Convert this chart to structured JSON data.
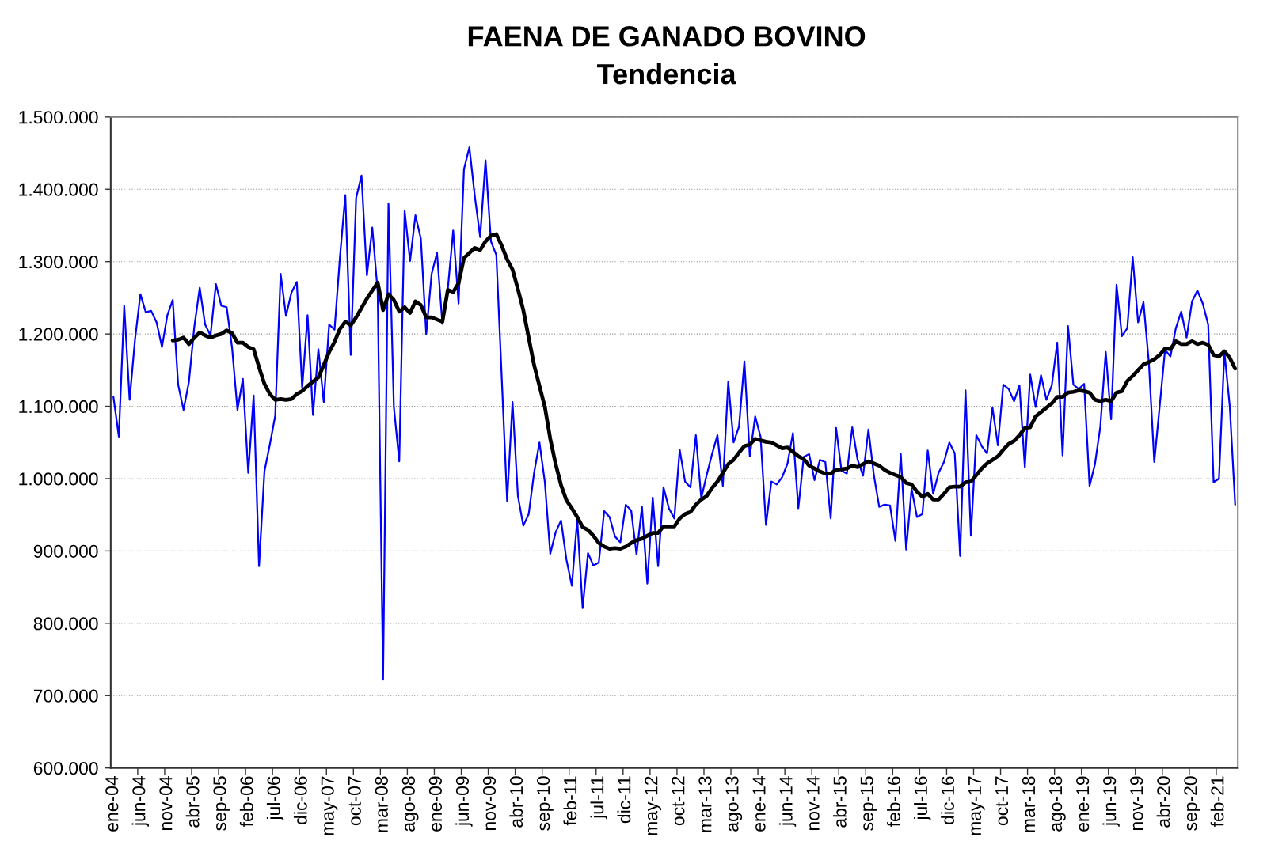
{
  "chart_data": {
    "type": "line",
    "title": "FAENA DE GANADO BOVINO",
    "subtitle": "Tendencia",
    "categories": [
      "ene-04",
      null,
      null,
      null,
      null,
      "jun-04",
      null,
      null,
      null,
      null,
      "nov-04",
      null,
      null,
      null,
      null,
      "abr-05",
      null,
      null,
      null,
      null,
      "sep-05",
      null,
      null,
      null,
      null,
      "feb-06",
      null,
      null,
      null,
      null,
      "jul-06",
      null,
      null,
      null,
      null,
      "dic-06",
      null,
      null,
      null,
      null,
      "may-07",
      null,
      null,
      null,
      null,
      "oct-07",
      null,
      null,
      null,
      null,
      "mar-08",
      null,
      null,
      null,
      null,
      "ago-08",
      null,
      null,
      null,
      null,
      "ene-09",
      null,
      null,
      null,
      null,
      "jun-09",
      null,
      null,
      null,
      null,
      "nov-09",
      null,
      null,
      null,
      null,
      "abr-10",
      null,
      null,
      null,
      null,
      "sep-10",
      null,
      null,
      null,
      null,
      "feb-11",
      null,
      null,
      null,
      null,
      "jul-11",
      null,
      null,
      null,
      null,
      "dic-11",
      null,
      null,
      null,
      null,
      "may-12",
      null,
      null,
      null,
      null,
      "oct-12",
      null,
      null,
      null,
      null,
      "mar-13",
      null,
      null,
      null,
      null,
      "ago-13",
      null,
      null,
      null,
      null,
      "ene-14",
      null,
      null,
      null,
      null,
      "jun-14",
      null,
      null,
      null,
      null,
      "nov-14",
      null,
      null,
      null,
      null,
      "abr-15",
      null,
      null,
      null,
      null,
      "sep-15",
      null,
      null,
      null,
      null,
      "feb-16",
      null,
      null,
      null,
      null,
      "jul-16",
      null,
      null,
      null,
      null,
      "dic-16",
      null,
      null,
      null,
      null,
      "may-17",
      null,
      null,
      null,
      null,
      "oct-17",
      null,
      null,
      null,
      null,
      "mar-18",
      null,
      null,
      null,
      null,
      "ago-18",
      null,
      null,
      null,
      null,
      "ene-19",
      null,
      null,
      null,
      null,
      "jun-19",
      null,
      null,
      null,
      null,
      "nov-19",
      null,
      null,
      null,
      null,
      "abr-20",
      null,
      null,
      null,
      null,
      "sep-20",
      null,
      null,
      null,
      null,
      "feb-21",
      null,
      null,
      null
    ],
    "series": [
      {
        "color": "#0000ff",
        "values": [
          1113000,
          1058000,
          1239000,
          1109000,
          1192000,
          1255000,
          1230000,
          1232000,
          1216000,
          1182000,
          1226000,
          1247000,
          1130000,
          1095000,
          1134000,
          1210000,
          1264000,
          1213000,
          1198000,
          1269000,
          1239000,
          1237000,
          1181000,
          1095000,
          1138000,
          1008000,
          1115000,
          879000,
          1010000,
          1047000,
          1087000,
          1283000,
          1225000,
          1257000,
          1272000,
          1125000,
          1226000,
          1088000,
          1179000,
          1106000,
          1213000,
          1206000,
          1306000,
          1392000,
          1171000,
          1388000,
          1419000,
          1281000,
          1347000,
          1258000,
          722000,
          1380000,
          1099000,
          1024000,
          1370000,
          1301000,
          1364000,
          1332000,
          1200000,
          1283000,
          1312000,
          1214000,
          1262000,
          1343000,
          1242000,
          1428000,
          1458000,
          1391000,
          1334000,
          1440000,
          1328000,
          1309000,
          1140000,
          969000,
          1106000,
          976000,
          935000,
          951000,
          1008000,
          1050000,
          995000,
          896000,
          926000,
          942000,
          888000,
          852000,
          944000,
          821000,
          897000,
          880000,
          884000,
          955000,
          947000,
          920000,
          912000,
          964000,
          956000,
          895000,
          961000,
          855000,
          974000,
          879000,
          988000,
          959000,
          945000,
          1040000,
          996000,
          988000,
          1060000,
          973000,
          1005000,
          1034000,
          1060000,
          990000,
          1134000,
          1050000,
          1072000,
          1162000,
          1031000,
          1086000,
          1058000,
          936000,
          996000,
          992000,
          1002000,
          1021000,
          1063000,
          959000,
          1030000,
          1034000,
          998000,
          1026000,
          1023000,
          945000,
          1070000,
          1011000,
          1007000,
          1071000,
          1026000,
          1004000,
          1068000,
          1005000,
          961000,
          964000,
          963000,
          914000,
          1034000,
          902000,
          986000,
          947000,
          951000,
          1039000,
          979000,
          1008000,
          1023000,
          1050000,
          1035000,
          893000,
          1122000,
          921000,
          1060000,
          1045000,
          1035000,
          1098000,
          1046000,
          1130000,
          1124000,
          1107000,
          1129000,
          1016000,
          1144000,
          1099000,
          1143000,
          1109000,
          1129000,
          1188000,
          1032000,
          1211000,
          1130000,
          1124000,
          1131000,
          990000,
          1020000,
          1072000,
          1175000,
          1082000,
          1268000,
          1197000,
          1208000,
          1306000,
          1216000,
          1244000,
          1160000,
          1023000,
          1100000,
          1178000,
          1169000,
          1208000,
          1231000,
          1195000,
          1245000,
          1260000,
          1242000,
          1213000,
          995000,
          1000000,
          1175000,
          1100000,
          964000
        ]
      },
      {
        "color": "#000000",
        "values": [
          null,
          null,
          null,
          null,
          null,
          null,
          null,
          null,
          null,
          null,
          null,
          1191000,
          1192000,
          1195000,
          1186000,
          1195000,
          1202000,
          1198000,
          1195000,
          1198000,
          1200000,
          1205000,
          1201000,
          1188000,
          1188000,
          1182000,
          1179000,
          1154000,
          1131000,
          1117000,
          1109000,
          1110000,
          1109000,
          1110000,
          1117000,
          1121000,
          1128000,
          1134000,
          1140000,
          1157000,
          1175000,
          1189000,
          1207000,
          1217000,
          1212000,
          1223000,
          1236000,
          1249000,
          1260000,
          1271000,
          1233000,
          1255000,
          1247000,
          1231000,
          1237000,
          1229000,
          1245000,
          1240000,
          1223000,
          1223000,
          1220000,
          1217000,
          1261000,
          1258000,
          1270000,
          1305000,
          1312000,
          1319000,
          1316000,
          1328000,
          1336000,
          1338000,
          1322000,
          1303000,
          1289000,
          1262000,
          1233000,
          1195000,
          1157000,
          1128000,
          1099000,
          1055000,
          1020000,
          991000,
          970000,
          959000,
          947000,
          933000,
          929000,
          921000,
          911000,
          906000,
          903000,
          904000,
          903000,
          906000,
          911000,
          915000,
          917000,
          921000,
          925000,
          925000,
          934000,
          934000,
          934000,
          945000,
          951000,
          954000,
          964000,
          971000,
          976000,
          987000,
          996000,
          1008000,
          1020000,
          1026000,
          1036000,
          1045000,
          1047000,
          1055000,
          1053000,
          1051000,
          1050000,
          1046000,
          1042000,
          1043000,
          1037000,
          1031000,
          1027000,
          1018000,
          1014000,
          1010000,
          1007000,
          1007000,
          1012000,
          1013000,
          1014000,
          1018000,
          1016000,
          1020000,
          1024000,
          1021000,
          1018000,
          1012000,
          1008000,
          1005000,
          1002000,
          994000,
          992000,
          982000,
          975000,
          979000,
          971000,
          971000,
          979000,
          988000,
          989000,
          989000,
          995000,
          996000,
          1005000,
          1014000,
          1021000,
          1026000,
          1031000,
          1040000,
          1048000,
          1052000,
          1060000,
          1070000,
          1071000,
          1086000,
          1092000,
          1098000,
          1104000,
          1113000,
          1113000,
          1119000,
          1120000,
          1122000,
          1121000,
          1119000,
          1109000,
          1107000,
          1109000,
          1107000,
          1119000,
          1121000,
          1135000,
          1142000,
          1150000,
          1158000,
          1161000,
          1165000,
          1171000,
          1180000,
          1179000,
          1190000,
          1186000,
          1186000,
          1190000,
          1186000,
          1188000,
          1185000,
          1171000,
          1169000,
          1176000,
          1167000,
          1152000
        ]
      }
    ],
    "ylim": [
      600000,
      1500000
    ],
    "yticks": [
      {
        "value": 600000,
        "label": "600.000"
      },
      {
        "value": 700000,
        "label": "700.000"
      },
      {
        "value": 800000,
        "label": "800.000"
      },
      {
        "value": 900000,
        "label": "900.000"
      },
      {
        "value": 1000000,
        "label": "1.000.000"
      },
      {
        "value": 1100000,
        "label": "1.100.000"
      },
      {
        "value": 1200000,
        "label": "1.200.000"
      },
      {
        "value": 1300000,
        "label": "1.300.000"
      },
      {
        "value": 1400000,
        "label": "1.400.000"
      },
      {
        "value": 1500000,
        "label": "1.500.000"
      }
    ],
    "grid": "y"
  }
}
